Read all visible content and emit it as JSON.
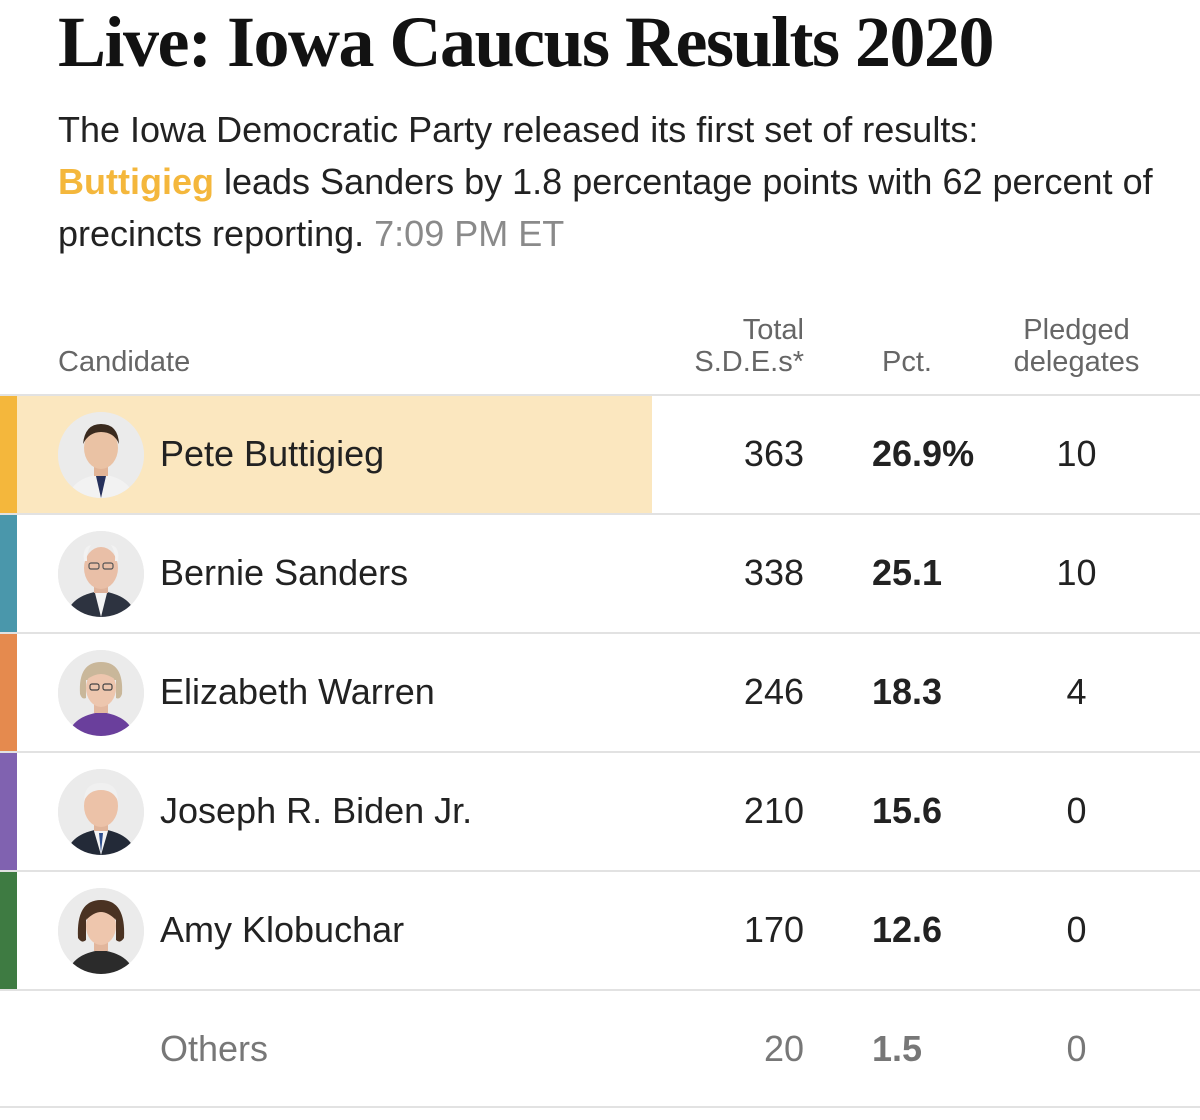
{
  "headline": "Live: Iowa Caucus Results 2020",
  "summary": {
    "line1": "The Iowa Democratic Party released its first set of results:",
    "leader": "Buttigieg",
    "line2": " leads Sanders by 1.8 percentage points with 62 percent of precincts reporting.",
    "timestamp": "7:09 PM ET"
  },
  "table": {
    "columns": {
      "candidate": "Candidate",
      "sde_line1": "Total",
      "sde_line2": "S.D.E.s*",
      "pct": "Pct.",
      "delegates_line1": "Pledged",
      "delegates_line2": "delegates"
    },
    "rows": [
      {
        "name": "Pete Buttigieg",
        "sdes": "363",
        "pct": "26.9%",
        "delegates": "10",
        "color": "#f4b73c",
        "avatar": "buttigieg-photo-icon",
        "leading": true
      },
      {
        "name": "Bernie Sanders",
        "sdes": "338",
        "pct": "25.1",
        "delegates": "10",
        "color": "#4a97ab",
        "avatar": "sanders-photo-icon"
      },
      {
        "name": "Elizabeth Warren",
        "sdes": "246",
        "pct": "18.3",
        "delegates": "4",
        "color": "#e58a4e",
        "avatar": "warren-photo-icon"
      },
      {
        "name": "Joseph R. Biden Jr.",
        "sdes": "210",
        "pct": "15.6",
        "delegates": "0",
        "color": "#8062b0",
        "avatar": "biden-photo-icon"
      },
      {
        "name": "Amy Klobuchar",
        "sdes": "170",
        "pct": "12.6",
        "delegates": "0",
        "color": "#3e7b42",
        "avatar": "klobuchar-photo-icon"
      }
    ],
    "others": {
      "name": "Others",
      "sdes": "20",
      "pct": "1.5",
      "delegates": "0"
    }
  }
}
